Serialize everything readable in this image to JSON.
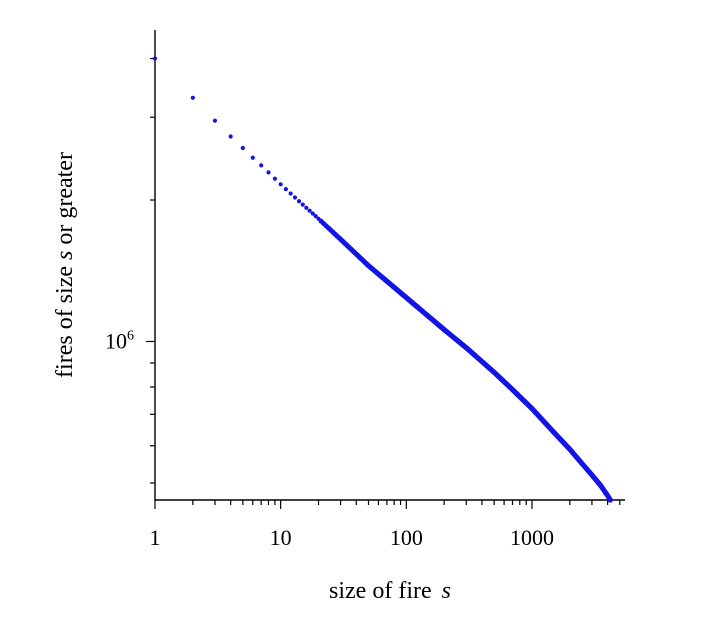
{
  "chart_data": {
    "type": "scatter",
    "title": "",
    "xlabel": "size of fire",
    "xlabel_var": "s",
    "ylabel_pre": "fires of size ",
    "ylabel_var": "s",
    "ylabel_post": " or greater",
    "xscale": "log",
    "yscale": "log",
    "xlim": [
      1,
      5500
    ],
    "ylim": [
      460000,
      4600000
    ],
    "x_ticks": [
      {
        "value": 1,
        "label": "1"
      },
      {
        "value": 10,
        "label": "10"
      },
      {
        "value": 100,
        "label": "100"
      },
      {
        "value": 1000,
        "label": "1000"
      }
    ],
    "y_ticks": [
      {
        "value": 1000000,
        "base": "10",
        "exp": "6"
      }
    ],
    "grid": false,
    "legend": "none",
    "point_color": "#1414e6",
    "series": [
      {
        "points": [
          [
            1,
            4000000
          ],
          [
            2,
            3300000
          ],
          [
            3,
            2950000
          ],
          [
            4,
            2730000
          ],
          [
            5,
            2580000
          ],
          [
            6,
            2460000
          ],
          [
            7,
            2370000
          ],
          [
            8,
            2290000
          ],
          [
            9,
            2220000
          ],
          [
            10,
            2160000
          ],
          [
            11,
            2110000
          ],
          [
            12,
            2065000
          ],
          [
            13,
            2025000
          ],
          [
            14,
            1988000
          ],
          [
            15,
            1955000
          ],
          [
            16,
            1925000
          ],
          [
            17,
            1898000
          ],
          [
            18,
            1872000
          ],
          [
            19,
            1848000
          ],
          [
            20,
            1825000
          ],
          [
            30,
            1650000
          ],
          [
            50,
            1450000
          ],
          [
            100,
            1240000
          ],
          [
            200,
            1060000
          ],
          [
            300,
            970000
          ],
          [
            500,
            860000
          ],
          [
            700,
            790000
          ],
          [
            1000,
            720000
          ],
          [
            1500,
            640000
          ],
          [
            2000,
            590000
          ],
          [
            2500,
            550000
          ],
          [
            3000,
            520000
          ],
          [
            3500,
            495000
          ],
          [
            4000,
            470000
          ],
          [
            4200,
            460000
          ]
        ]
      }
    ]
  }
}
